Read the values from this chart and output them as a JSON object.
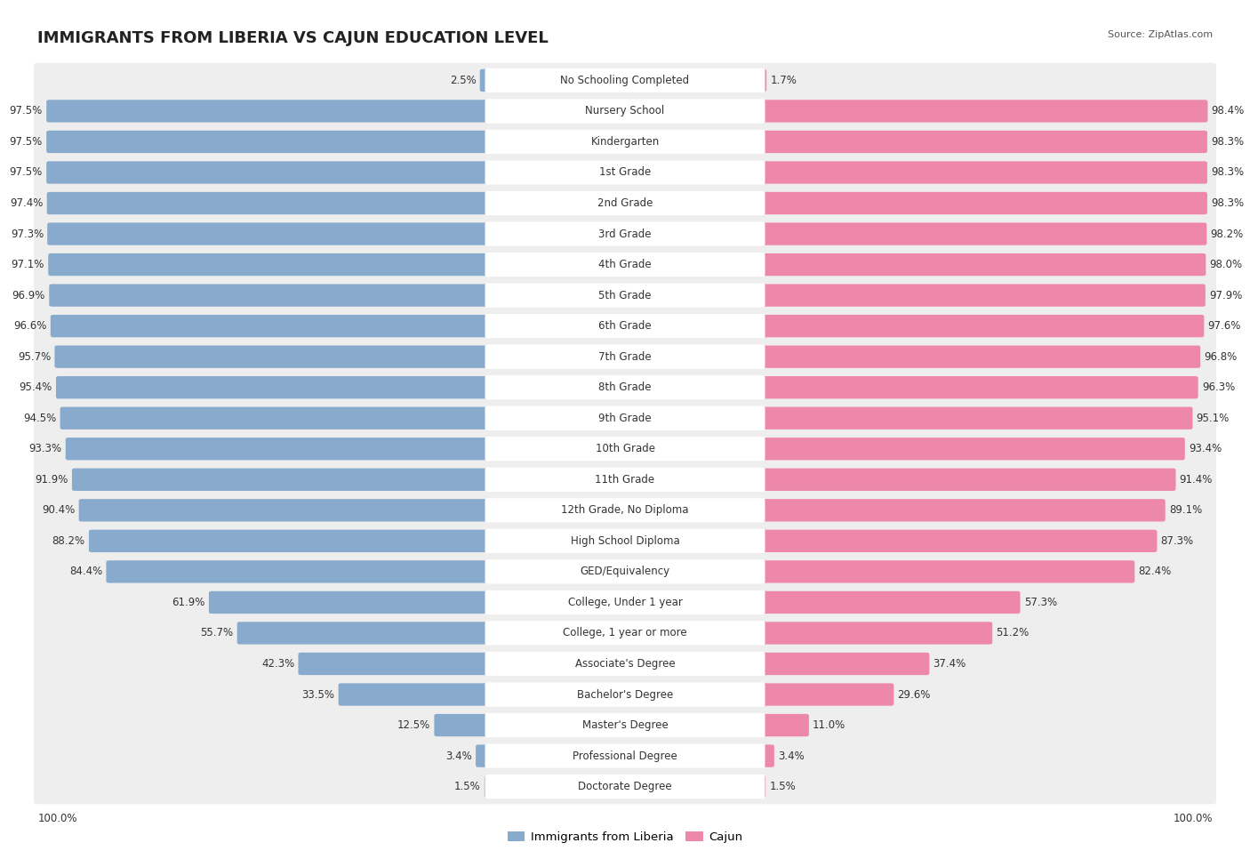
{
  "title": "IMMIGRANTS FROM LIBERIA VS CAJUN EDUCATION LEVEL",
  "source": "Source: ZipAtlas.com",
  "categories": [
    "No Schooling Completed",
    "Nursery School",
    "Kindergarten",
    "1st Grade",
    "2nd Grade",
    "3rd Grade",
    "4th Grade",
    "5th Grade",
    "6th Grade",
    "7th Grade",
    "8th Grade",
    "9th Grade",
    "10th Grade",
    "11th Grade",
    "12th Grade, No Diploma",
    "High School Diploma",
    "GED/Equivalency",
    "College, Under 1 year",
    "College, 1 year or more",
    "Associate's Degree",
    "Bachelor's Degree",
    "Master's Degree",
    "Professional Degree",
    "Doctorate Degree"
  ],
  "liberia_values": [
    2.5,
    97.5,
    97.5,
    97.5,
    97.4,
    97.3,
    97.1,
    96.9,
    96.6,
    95.7,
    95.4,
    94.5,
    93.3,
    91.9,
    90.4,
    88.2,
    84.4,
    61.9,
    55.7,
    42.3,
    33.5,
    12.5,
    3.4,
    1.5
  ],
  "cajun_values": [
    1.7,
    98.4,
    98.3,
    98.3,
    98.3,
    98.2,
    98.0,
    97.9,
    97.6,
    96.8,
    96.3,
    95.1,
    93.4,
    91.4,
    89.1,
    87.3,
    82.4,
    57.3,
    51.2,
    37.4,
    29.6,
    11.0,
    3.4,
    1.5
  ],
  "liberia_color": "#88aacc",
  "cajun_color": "#ee88aa",
  "row_bg_color": "#eeeeee",
  "title_fontsize": 13,
  "label_fontsize": 8.5,
  "value_fontsize": 8.5,
  "legend_fontsize": 9.5,
  "source_fontsize": 8
}
